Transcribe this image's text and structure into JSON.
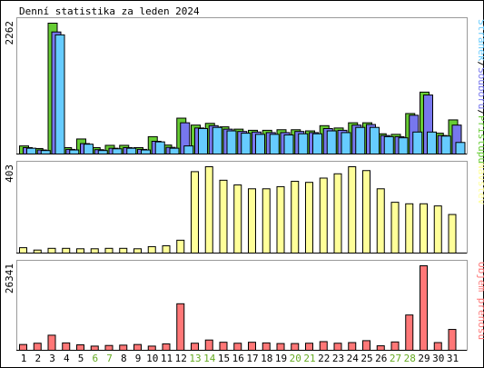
{
  "title": "Denní statistika za leden 2024",
  "colors": {
    "frame": "#000000",
    "separator": "#9a9a9a",
    "hits": "#66cc33",
    "files": "#7777ee",
    "pages": "#66ccff",
    "visits": "#ffff99",
    "kbytes": "#ff7777",
    "weekday_label": "#000000",
    "weekend_label": "#66aa22"
  },
  "chart_data": [
    {
      "type": "bar",
      "panel": "hits-files-pages",
      "max_label": "2262",
      "ylim": [
        0,
        2262
      ],
      "categories": [
        "1",
        "2",
        "3",
        "4",
        "5",
        "6",
        "7",
        "8",
        "9",
        "10",
        "11",
        "12",
        "13",
        "14",
        "15",
        "16",
        "17",
        "18",
        "19",
        "20",
        "21",
        "22",
        "23",
        "24",
        "25",
        "26",
        "27",
        "28",
        "29",
        "30",
        "31"
      ],
      "weekend_days": [
        "6",
        "7",
        "13",
        "14",
        "20",
        "21",
        "27",
        "28"
      ],
      "legend_parts": [
        {
          "text": "Stránek",
          "color_key": "pages"
        },
        {
          "text": "/",
          "color_key": "frame"
        },
        {
          "text": "Souborů",
          "color_key": "files"
        },
        {
          "text": "/",
          "color_key": "frame"
        },
        {
          "text": "Přístupů",
          "color_key": "hits"
        }
      ],
      "series": [
        {
          "name": "Přístupů",
          "color_key": "hits",
          "values": [
            140,
            95,
            2262,
            110,
            260,
            110,
            150,
            150,
            110,
            300,
            155,
            620,
            500,
            530,
            470,
            430,
            410,
            410,
            420,
            420,
            400,
            490,
            450,
            540,
            540,
            350,
            340,
            700,
            1070,
            360,
            590
          ]
        },
        {
          "name": "Souborů",
          "color_key": "files",
          "values": [
            110,
            70,
            2110,
            80,
            180,
            75,
            100,
            110,
            80,
            220,
            115,
            540,
            450,
            490,
            430,
            390,
            380,
            370,
            370,
            390,
            370,
            440,
            410,
            500,
            510,
            320,
            300,
            670,
            1020,
            320,
            500
          ]
        },
        {
          "name": "Stránek",
          "color_key": "pages",
          "values": [
            100,
            60,
            2060,
            70,
            170,
            60,
            90,
            100,
            70,
            210,
            100,
            140,
            440,
            460,
            400,
            360,
            340,
            340,
            330,
            350,
            350,
            400,
            370,
            460,
            460,
            300,
            280,
            380,
            380,
            310,
            200
          ]
        }
      ]
    },
    {
      "type": "bar",
      "panel": "visits",
      "max_label": "403",
      "ylim": [
        0,
        403
      ],
      "categories": [
        "1",
        "2",
        "3",
        "4",
        "5",
        "6",
        "7",
        "8",
        "9",
        "10",
        "11",
        "12",
        "13",
        "14",
        "15",
        "16",
        "17",
        "18",
        "19",
        "20",
        "21",
        "22",
        "23",
        "24",
        "25",
        "26",
        "27",
        "28",
        "29",
        "30",
        "31"
      ],
      "legend_parts": [
        {
          "text": "Návštěv",
          "color_key": "visits"
        }
      ],
      "series": [
        {
          "name": "Návštěv",
          "color_key": "visits",
          "values": [
            25,
            14,
            22,
            22,
            20,
            20,
            22,
            22,
            20,
            30,
            34,
            60,
            380,
            403,
            340,
            318,
            300,
            300,
            310,
            335,
            330,
            350,
            370,
            403,
            385,
            300,
            237,
            230,
            230,
            220,
            180
          ]
        }
      ]
    },
    {
      "type": "bar",
      "panel": "kbytes",
      "max_label": "26341",
      "ylim": [
        0,
        26341
      ],
      "categories": [
        "1",
        "2",
        "3",
        "4",
        "5",
        "6",
        "7",
        "8",
        "9",
        "10",
        "11",
        "12",
        "13",
        "14",
        "15",
        "16",
        "17",
        "18",
        "19",
        "20",
        "21",
        "22",
        "23",
        "24",
        "25",
        "26",
        "27",
        "28",
        "29",
        "30",
        "31"
      ],
      "legend_parts": [
        {
          "text": "Objem přenosů",
          "color_key": "kbytes"
        }
      ],
      "series": [
        {
          "name": "Objem přenosů",
          "color_key": "kbytes",
          "values": [
            1800,
            2200,
            4700,
            2300,
            1700,
            1300,
            1500,
            1600,
            1800,
            1300,
            2000,
            14500,
            2200,
            3200,
            2500,
            2200,
            2500,
            2300,
            2100,
            2100,
            2200,
            2700,
            2200,
            2400,
            3000,
            1400,
            2600,
            11000,
            26341,
            2400,
            6500
          ]
        }
      ]
    }
  ]
}
